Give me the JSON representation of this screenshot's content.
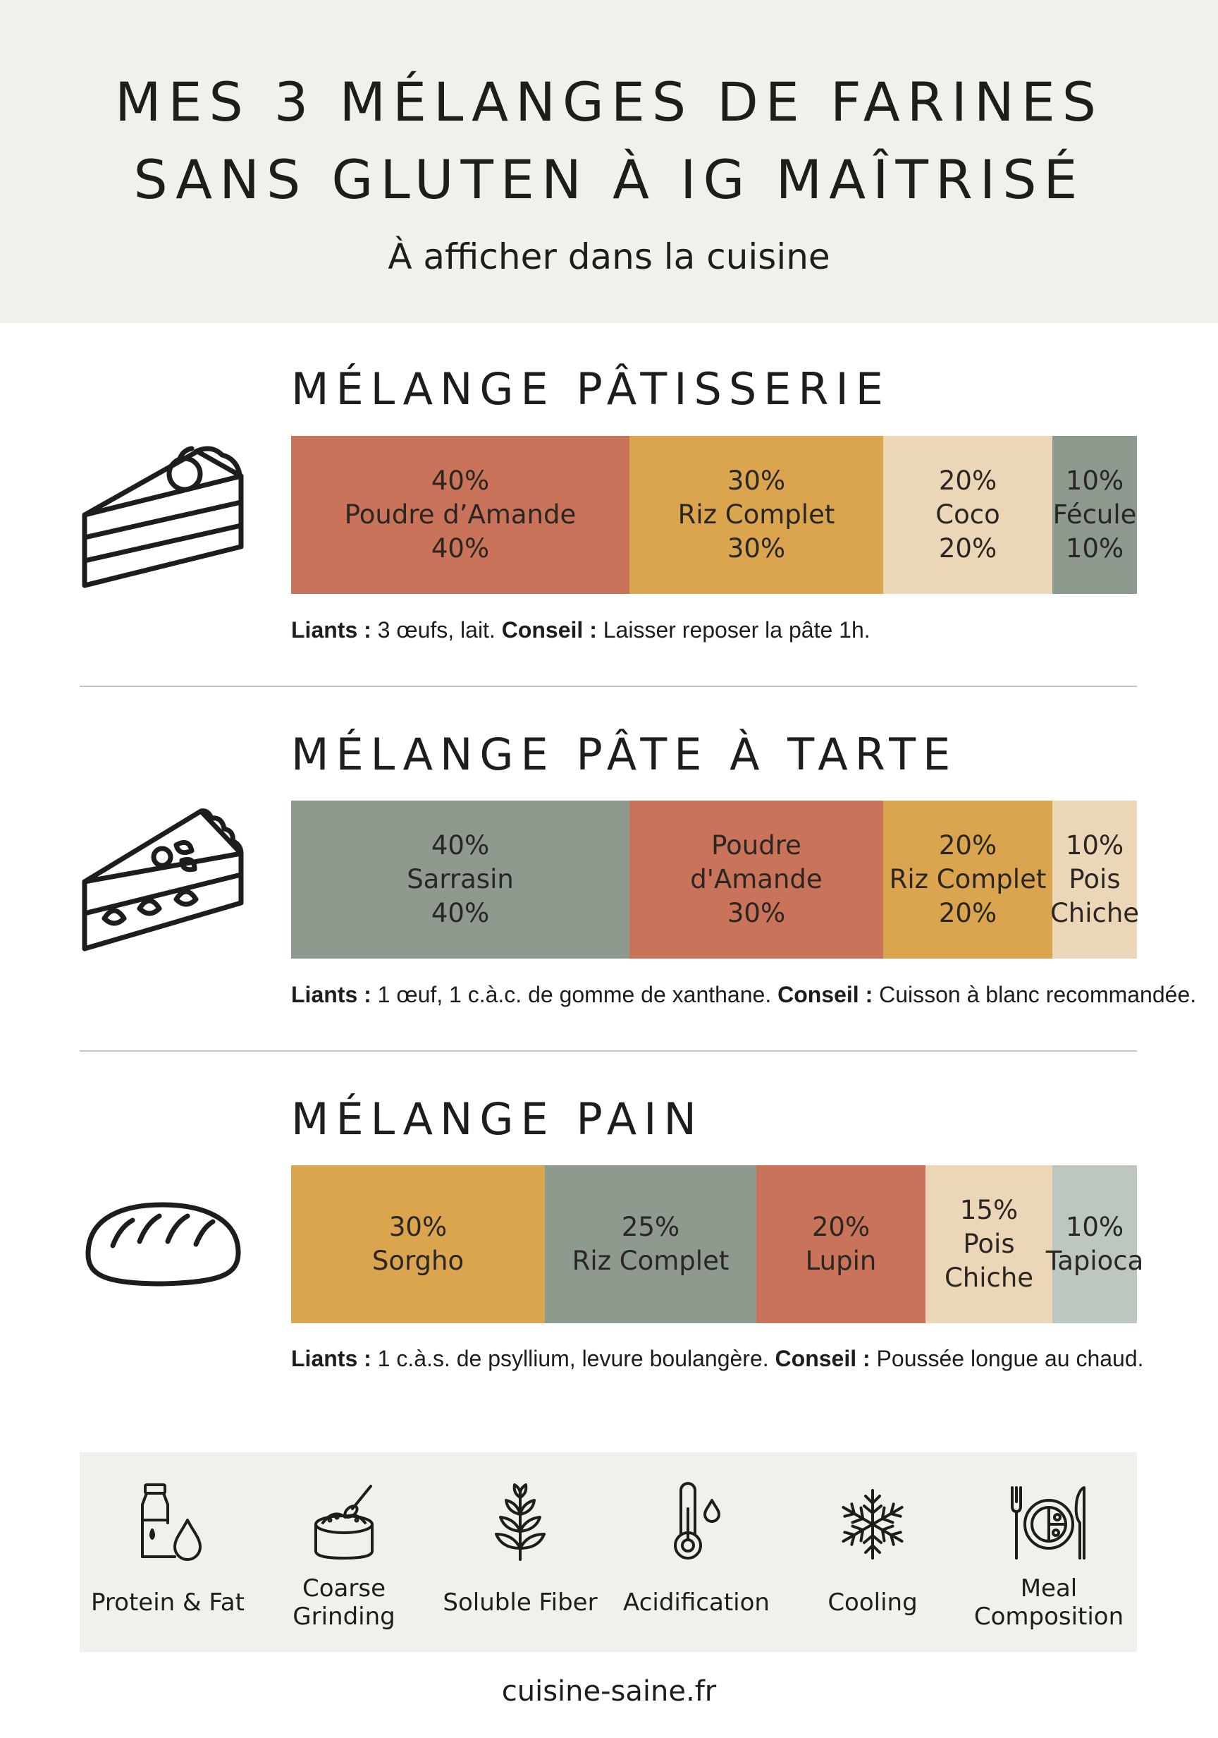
{
  "header": {
    "title_line1": "MES 3 MÉLANGES DE FARINES",
    "title_line2": "SANS GLUTEN À IG MAÎTRISÉ",
    "subtitle": "À afficher dans la cuisine"
  },
  "colors": {
    "terracotta": "#c9735a",
    "mustard": "#dba550",
    "beige": "#ecd6b8",
    "sage": "#8e9a8e",
    "light_sage": "#bcc7be",
    "header_bg": "#f2f0eb"
  },
  "sections": [
    {
      "title": "MÉLANGE PÂTISSERIE",
      "icon": "cake-slice-icon",
      "segments": [
        {
          "lines": [
            "40%",
            "Poudre d’Amande",
            "40%"
          ],
          "share": 40,
          "color": "#c9735a"
        },
        {
          "lines": [
            "30%",
            "Riz Complet",
            "30%"
          ],
          "share": 30,
          "color": "#dba550"
        },
        {
          "lines": [
            "20%",
            "Coco",
            "20%"
          ],
          "share": 20,
          "color": "#ecd6b8"
        },
        {
          "lines": [
            "10%",
            "Fécule",
            "10%"
          ],
          "share": 10,
          "color": "#8e9a8e"
        }
      ],
      "note": {
        "binders_label": "Liants :",
        "binders": " 3 œufs, lait. ",
        "tip_label": "Conseil :",
        "tip": " Laisser reposer la pâte 1h."
      }
    },
    {
      "title": "MÉLANGE PÂTE À TARTE",
      "icon": "tart-slice-icon",
      "segments": [
        {
          "lines": [
            "40%",
            "Sarrasin",
            "40%"
          ],
          "share": 40,
          "color": "#8e9a8e"
        },
        {
          "lines": [
            "Poudre",
            "d'Amande",
            "30%"
          ],
          "share": 30,
          "color": "#c9735a"
        },
        {
          "lines": [
            "20%",
            "Riz Complet",
            "20%"
          ],
          "share": 20,
          "color": "#dba550"
        },
        {
          "lines": [
            "10%",
            "Pois",
            "Chiche"
          ],
          "share": 10,
          "color": "#ecd6b8"
        }
      ],
      "note": {
        "binders_label": "Liants :",
        "binders": " 1 œuf, 1 c.à.c. de gomme de xanthane. ",
        "tip_label": "Conseil :",
        "tip": " Cuisson à blanc recommandée."
      }
    },
    {
      "title": "MÉLANGE PAIN",
      "icon": "bread-loaf-icon",
      "segments": [
        {
          "lines": [
            "30%",
            "Sorgho"
          ],
          "share": 30,
          "color": "#dba550"
        },
        {
          "lines": [
            "25%",
            "Riz Complet"
          ],
          "share": 25,
          "color": "#8e9a8e"
        },
        {
          "lines": [
            "20%",
            "Lupin"
          ],
          "share": 20,
          "color": "#c9735a"
        },
        {
          "lines": [
            "15%",
            "Pois",
            "Chiche"
          ],
          "share": 15,
          "color": "#ecd6b8"
        },
        {
          "lines": [
            "10%",
            "Tapioca"
          ],
          "share": 10,
          "color": "#bcc7be"
        }
      ],
      "note": {
        "binders_label": "Liants :",
        "binders": " 1 c.à.s. de psyllium, levure boulangère. ",
        "tip_label": "Conseil :",
        "tip": " Poussée longue au chaud."
      }
    }
  ],
  "tips": [
    {
      "label": "Protein & Fat",
      "icon": "milk-bottle-drop-icon"
    },
    {
      "label": "Coarse Grinding",
      "icon": "flour-bowl-scoop-icon"
    },
    {
      "label": "Soluble Fiber",
      "icon": "wheat-plant-icon"
    },
    {
      "label": "Acidification",
      "icon": "thermometer-drop-icon"
    },
    {
      "label": "Cooling",
      "icon": "snowflake-icon"
    },
    {
      "label": "Meal Composition",
      "icon": "plate-cutlery-icon"
    }
  ],
  "footer": {
    "site": "cuisine-saine.fr"
  }
}
